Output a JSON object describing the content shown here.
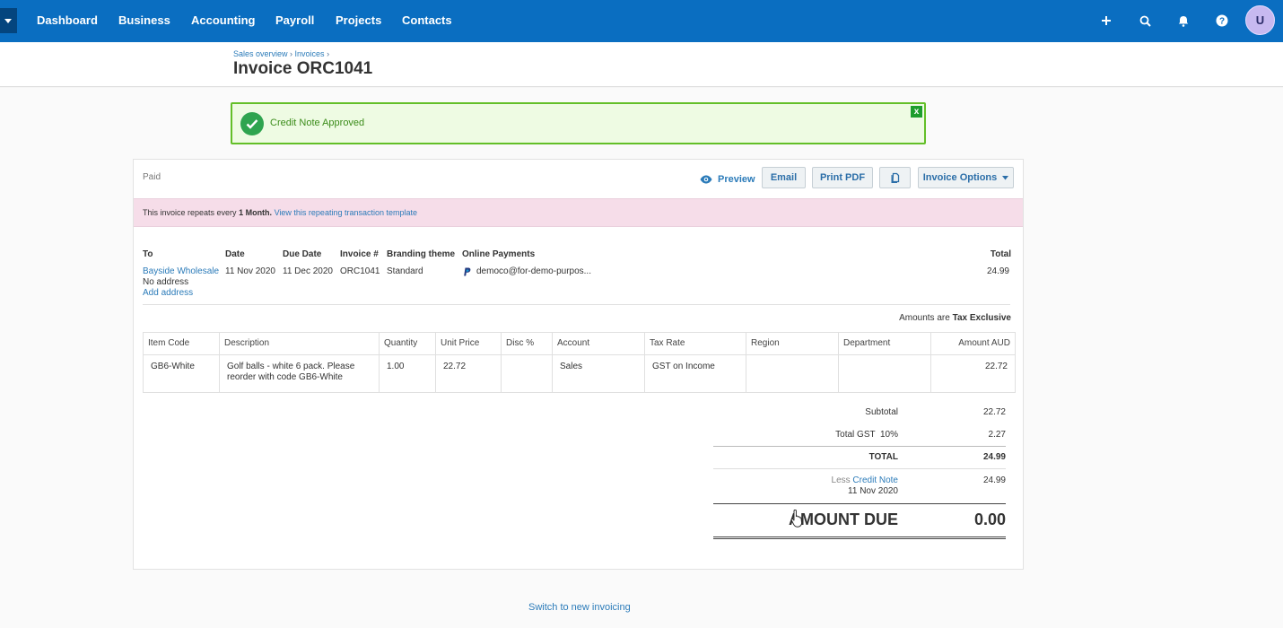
{
  "nav": {
    "items": [
      "Dashboard",
      "Business",
      "Accounting",
      "Payroll",
      "Projects",
      "Contacts"
    ],
    "icons": [
      "plus-icon",
      "search-icon",
      "bell-icon",
      "help-icon"
    ],
    "avatar": "U",
    "color": "#0a6ec1"
  },
  "header": {
    "breadcrumb": [
      "Sales overview",
      "Invoices"
    ],
    "title": "Invoice ORC1041"
  },
  "alert": {
    "message": "Credit Note Approved",
    "close": "x",
    "color": "#63bf28"
  },
  "invoice": {
    "status": "Paid",
    "actions": {
      "preview": "Preview",
      "email": "Email",
      "print": "Print PDF",
      "options": "Invoice Options"
    },
    "repeat": {
      "text_prefix": "This invoice repeats every",
      "frequency": "1 Month.",
      "link": "View this repeating transaction template"
    },
    "details": {
      "to_label": "To",
      "to_name": "Bayside Wholesale",
      "address": "No address",
      "add_address": "Add address",
      "date_label": "Date",
      "date": "11 Nov 2020",
      "due_label": "Due Date",
      "due": "11 Dec 2020",
      "number_label": "Invoice #",
      "number": "ORC1041",
      "branding_label": "Branding theme",
      "branding": "Standard",
      "payments_label": "Online Payments",
      "payments": "democo@for-demo-purpos...",
      "total_label": "Total",
      "total": "24.99"
    },
    "amounts_note": {
      "prefix": "Amounts are",
      "value": "Tax Exclusive"
    },
    "table": {
      "columns": [
        "Item Code",
        "Description",
        "Quantity",
        "Unit Price",
        "Disc %",
        "Account",
        "Tax Rate",
        "Region",
        "Department",
        "Amount AUD"
      ],
      "rows": [
        {
          "item_code": "GB6-White",
          "description_line1": "Golf balls - white 6 pack. Please",
          "description_line2": "reorder with code GB6-White",
          "quantity": "1.00",
          "unit_price": "22.72",
          "disc": "",
          "account": "Sales",
          "tax_rate": "GST on Income",
          "region": "",
          "department": "",
          "amount": "22.72"
        }
      ]
    },
    "totals": {
      "subtotal_label": "Subtotal",
      "subtotal": "22.72",
      "gst_label": "Total GST  10%",
      "gst": "2.27",
      "total_label": "TOTAL",
      "total": "24.99",
      "less_label": "Less",
      "credit_note_link": "Credit Note",
      "credit_note_date": "11 Nov 2020",
      "credit_note_amount": "24.99",
      "amount_due_label": "AMOUNT DUE",
      "amount_due": "0.00"
    }
  },
  "footer": {
    "switch_link": "Switch to new invoicing"
  }
}
